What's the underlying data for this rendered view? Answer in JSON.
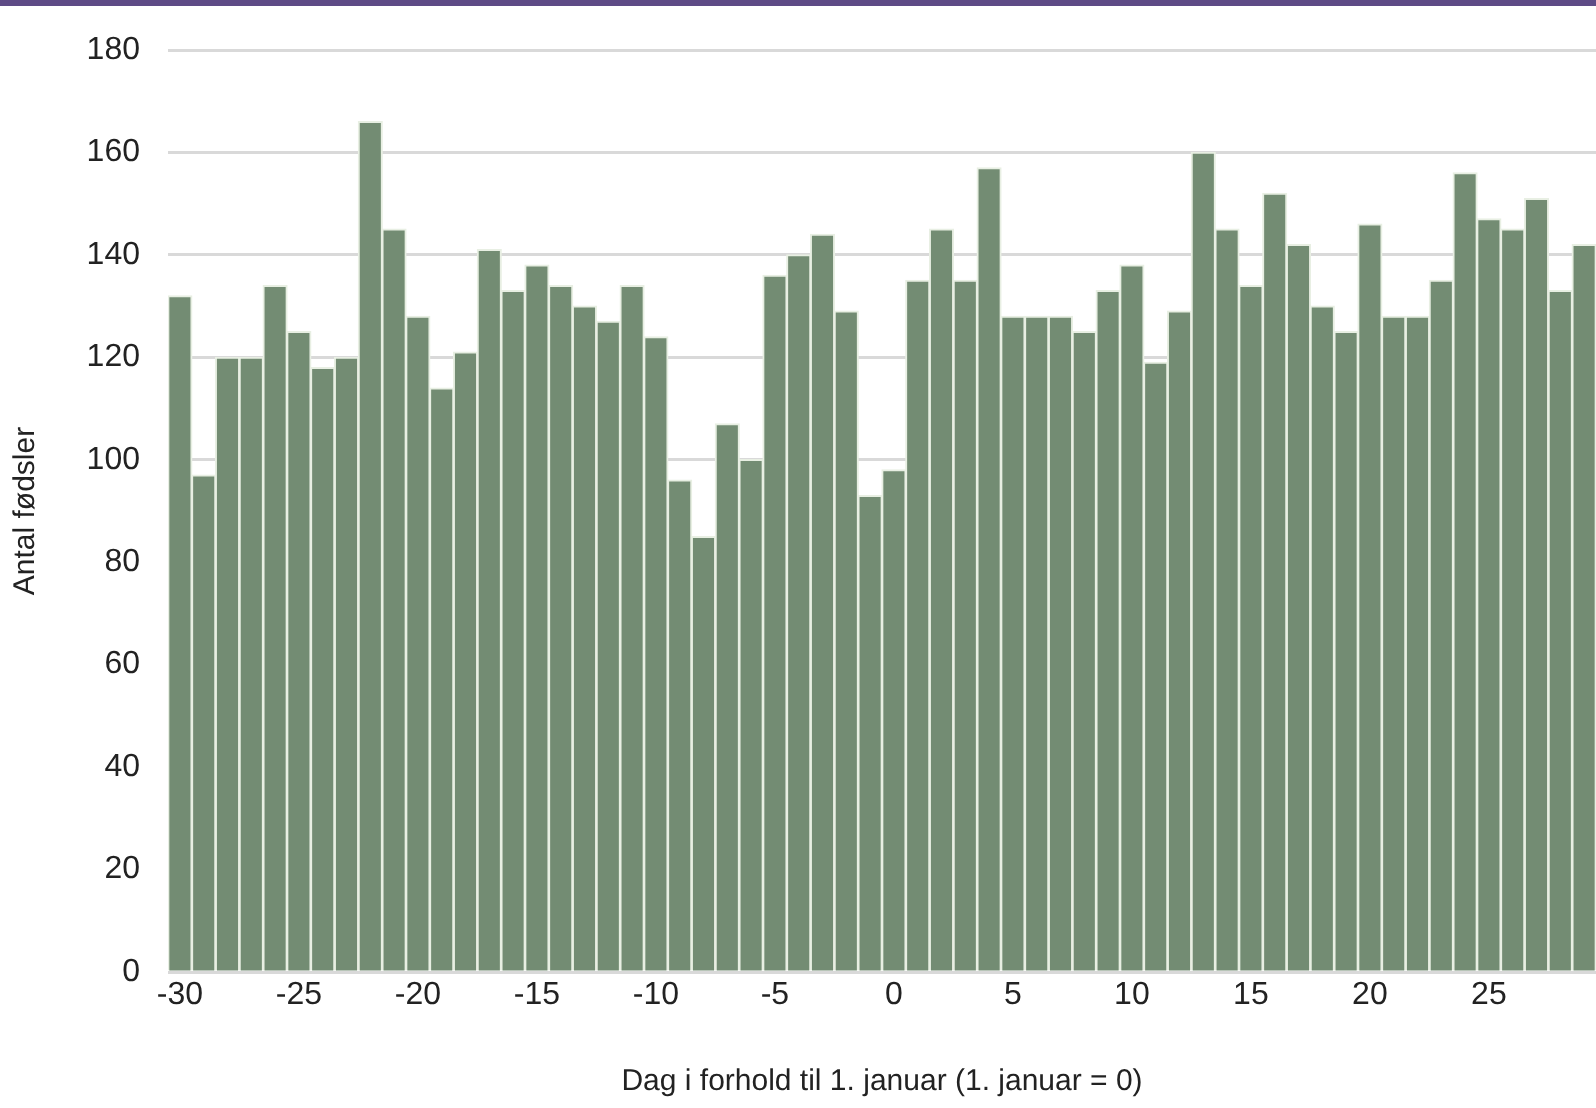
{
  "chart_data": {
    "type": "bar",
    "xlabel": "Dag i forhold til 1. januar (1. januar = 0)",
    "ylabel": "Antal fødsler",
    "x": [
      -30,
      -29,
      -28,
      -27,
      -26,
      -25,
      -24,
      -23,
      -22,
      -21,
      -20,
      -19,
      -18,
      -17,
      -16,
      -15,
      -14,
      -13,
      -12,
      -11,
      -10,
      -9,
      -8,
      -7,
      -6,
      -5,
      -4,
      -3,
      -2,
      -1,
      0,
      1,
      2,
      3,
      4,
      5,
      6,
      7,
      8,
      9,
      10,
      11,
      12,
      13,
      14,
      15,
      16,
      17,
      18,
      19,
      20,
      21,
      22,
      23,
      24,
      25,
      26,
      27,
      28,
      29
    ],
    "values": [
      132,
      97,
      120,
      120,
      134,
      125,
      118,
      120,
      166,
      145,
      128,
      114,
      121,
      141,
      133,
      138,
      134,
      130,
      127,
      134,
      124,
      96,
      85,
      107,
      100,
      136,
      140,
      144,
      129,
      93,
      98,
      135,
      145,
      135,
      157,
      128,
      128,
      128,
      125,
      133,
      138,
      119,
      129,
      160,
      145,
      134,
      152,
      142,
      130,
      125,
      146,
      128,
      128,
      135,
      156,
      147,
      145,
      151,
      133,
      142
    ],
    "color": "#738c73",
    "xlim": [
      -30.5,
      29.5
    ],
    "xticks": [
      -30,
      -25,
      -20,
      -15,
      -10,
      -5,
      0,
      5,
      10,
      15,
      20,
      25
    ],
    "ylim": [
      0,
      180
    ],
    "yticks": [
      0,
      20,
      40,
      60,
      80,
      100,
      120,
      140,
      160,
      180
    ],
    "grid": "y",
    "legend": false
  }
}
